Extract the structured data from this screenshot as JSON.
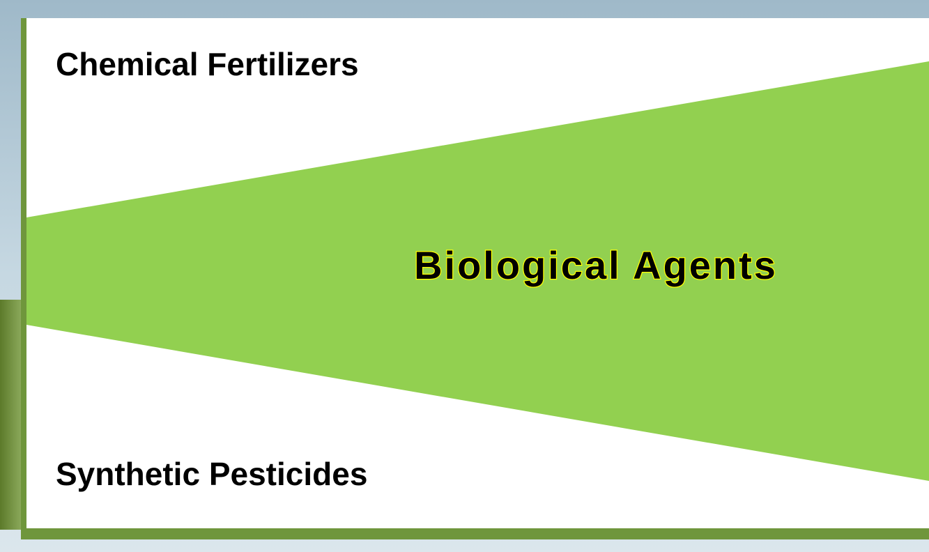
{
  "labels": {
    "top": "Chemical Fertilizers",
    "center": "Biological Agents",
    "bottom": "Synthetic Pesticides"
  }
}
